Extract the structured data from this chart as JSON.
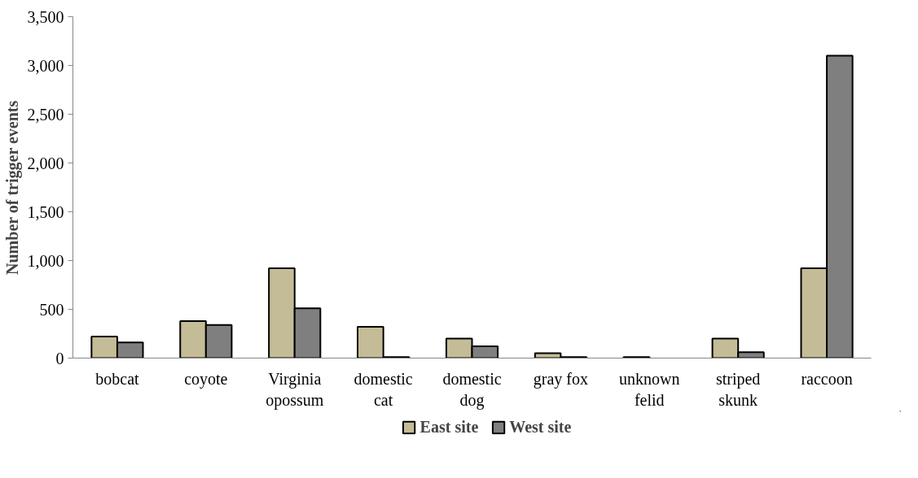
{
  "chart_data": {
    "type": "bar",
    "ylabel": "Number of trigger events",
    "categories": [
      "bobcat",
      "coyote",
      "Virginia\nopossum",
      "domestic\ncat",
      "domestic\ndog",
      "gray fox",
      "unknown\nfelid",
      "striped\nskunk",
      "raccoon"
    ],
    "series": [
      {
        "name": "East site",
        "color": "#c4bc96",
        "values": [
          220,
          380,
          920,
          320,
          200,
          50,
          10,
          200,
          920
        ]
      },
      {
        "name": "West site",
        "color": "#7f7f7f",
        "values": [
          160,
          340,
          510,
          10,
          120,
          10,
          null,
          60,
          3100
        ]
      }
    ],
    "ylim": [
      0,
      3500
    ],
    "yticks": [
      {
        "value": 0,
        "label": "0"
      },
      {
        "value": 500,
        "label": "500"
      },
      {
        "value": 1000,
        "label": "1,000"
      },
      {
        "value": 1500,
        "label": "1,500"
      },
      {
        "value": 2000,
        "label": "2,000"
      },
      {
        "value": 2500,
        "label": "2,500"
      },
      {
        "value": 3000,
        "label": "3,000"
      },
      {
        "value": 3500,
        "label": "3,500"
      }
    ],
    "grid": false,
    "legend": "bottom"
  }
}
